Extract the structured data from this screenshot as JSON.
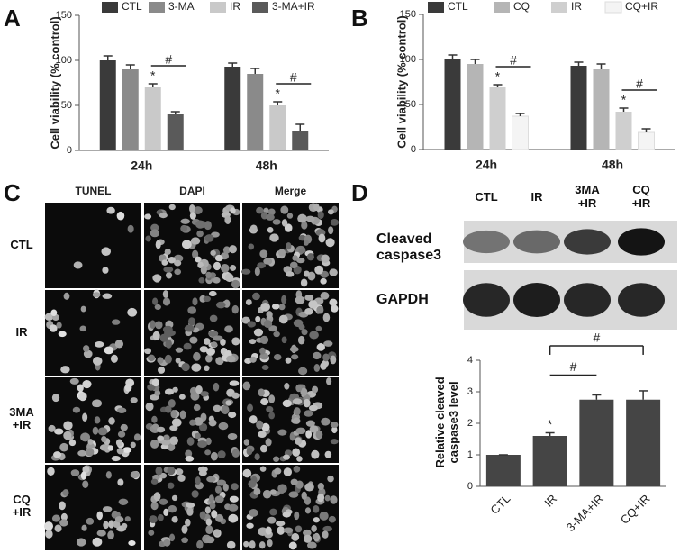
{
  "panel_labels": [
    "A",
    "B",
    "C",
    "D"
  ],
  "chart_data": [
    {
      "type": "bar",
      "ylabel": "Cell viability (% control)",
      "categories": [
        "24h",
        "48h"
      ],
      "series": [
        {
          "name": "CTL",
          "color": "#3a3a3a",
          "values": [
            100,
            93
          ],
          "errors": [
            5,
            4
          ]
        },
        {
          "name": "3-MA",
          "color": "#8a8a8a",
          "values": [
            90,
            85
          ],
          "errors": [
            5,
            6
          ]
        },
        {
          "name": "IR",
          "color": "#c9c9c9",
          "values": [
            70,
            50
          ],
          "errors": [
            4,
            4
          ]
        },
        {
          "name": "3-MA+IR",
          "color": "#5a5a5a",
          "values": [
            40,
            22
          ],
          "errors": [
            3,
            7
          ]
        }
      ],
      "ylim": [
        0,
        150
      ],
      "yticks": [
        0,
        50,
        100,
        150
      ],
      "annotations": [
        "*",
        "#",
        "*",
        "#"
      ]
    },
    {
      "type": "bar",
      "ylabel": "Cell viability (% control)",
      "categories": [
        "24h",
        "48h"
      ],
      "series": [
        {
          "name": "CTL",
          "color": "#3a3a3a",
          "values": [
            100,
            93
          ],
          "errors": [
            5,
            4
          ]
        },
        {
          "name": "CQ",
          "color": "#b5b5b5",
          "values": [
            95,
            89
          ],
          "errors": [
            5,
            6
          ]
        },
        {
          "name": "IR",
          "color": "#cfcfcf",
          "values": [
            69,
            42
          ],
          "errors": [
            3,
            4
          ]
        },
        {
          "name": "CQ+IR",
          "color": "#f4f4f4",
          "values": [
            37,
            19
          ],
          "errors": [
            3,
            4
          ]
        }
      ],
      "ylim": [
        0,
        150
      ],
      "yticks": [
        0,
        50,
        100,
        150
      ],
      "annotations": [
        "*",
        "#",
        "*",
        "#"
      ]
    },
    {
      "type": "bar",
      "ylabel": "Relative cleaved caspase3 level",
      "categories": [
        "CTL",
        "IR",
        "3-MA+IR",
        "CQ+IR"
      ],
      "values": [
        1,
        1.6,
        2.75,
        2.75
      ],
      "errors": [
        0,
        0.1,
        0.15,
        0.28
      ],
      "color": "#454545",
      "ylim": [
        0,
        4
      ],
      "yticks": [
        0,
        1,
        2,
        3,
        4
      ],
      "annotations": [
        "*",
        "#",
        "#"
      ]
    }
  ],
  "microscopy": {
    "columns": [
      "TUNEL",
      "DAPI",
      "Merge"
    ],
    "rows": [
      "CTL",
      "IR",
      "3MA\n+IR",
      "CQ\n+IR"
    ]
  },
  "blot": {
    "lanes": [
      "CTL",
      "IR",
      "3MA\n+IR",
      "CQ\n+IR"
    ],
    "bands": [
      "Cleaved\ncaspase3",
      "GAPDH"
    ]
  }
}
